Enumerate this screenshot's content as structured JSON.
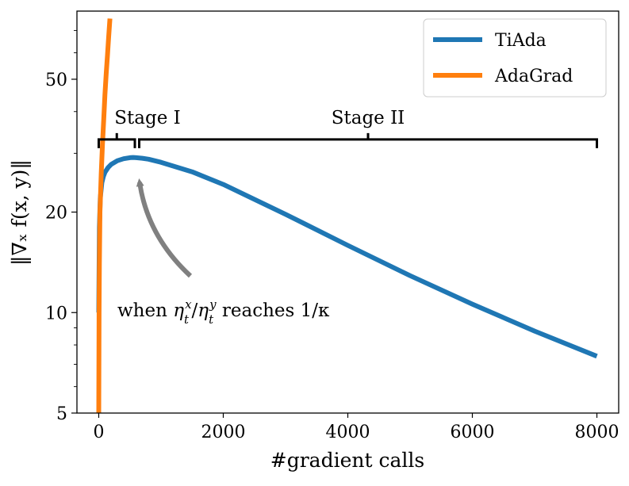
{
  "chart_data": {
    "type": "line",
    "title": "",
    "xlabel": "#gradient calls",
    "ylabel": "‖∇ₓ f(x, y)‖",
    "yscale": "log",
    "xlim": [
      -350,
      8350
    ],
    "ylim": [
      5,
      80
    ],
    "xticks": [
      0,
      2000,
      4000,
      6000,
      8000
    ],
    "xtick_labels": [
      "0",
      "2000",
      "4000",
      "6000",
      "8000"
    ],
    "yticks": [
      5,
      10,
      20,
      50
    ],
    "ytick_labels": [
      "5",
      "10",
      "20",
      "50"
    ],
    "grid": false,
    "legend_position": "top-right",
    "series": [
      {
        "name": "TiAda",
        "color": "#1f77b4",
        "x": [
          0,
          10,
          25,
          50,
          75,
          100,
          150,
          200,
          300,
          400,
          500,
          550,
          600,
          700,
          800,
          1000,
          1500,
          2000,
          3000,
          4000,
          5000,
          6000,
          7000,
          8000
        ],
        "y": [
          10,
          18,
          22,
          24.5,
          25.6,
          26.3,
          27.2,
          27.8,
          28.5,
          28.9,
          29.1,
          29.15,
          29.1,
          29.0,
          28.8,
          28.2,
          26.4,
          24.2,
          19.7,
          15.9,
          12.9,
          10.6,
          8.8,
          7.4
        ]
      },
      {
        "name": "AdaGrad",
        "color": "#ff7f0e",
        "x": [
          0,
          5,
          10,
          20,
          40,
          60,
          80,
          100,
          120,
          140,
          160,
          180
        ],
        "y": [
          5,
          10,
          14,
          20,
          26,
          32,
          38,
          45,
          52,
          59,
          67,
          76
        ]
      }
    ],
    "annotations": {
      "stage1_label": "Stage I",
      "stage2_label": "Stage II",
      "stage1_range": [
        0,
        580
      ],
      "stage2_range": [
        650,
        8000
      ],
      "bracket_level": 33,
      "arrow_text_prefix": "when ",
      "arrow_text_suffix": " reaches 1/κ",
      "arrow_target": [
        580,
        26.5
      ]
    }
  }
}
